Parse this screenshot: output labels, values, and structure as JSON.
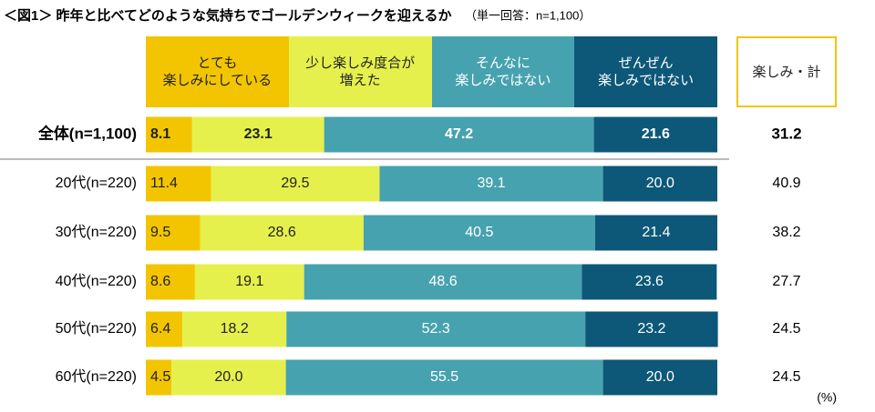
{
  "chart_data": {
    "type": "stacked-bar-100",
    "title": "＜図1＞ 昨年と比べてどのような気持ちでゴールデンウィークを迎えるか",
    "subtitle": "（単一回答：n=1,100）",
    "unit": "(%)",
    "categories": [
      "全体(n=1,100)",
      "20代(n=220)",
      "30代(n=220)",
      "40代(n=220)",
      "50代(n=220)",
      "60代(n=220)"
    ],
    "xlim": [
      0,
      100
    ],
    "series": [
      {
        "name": "とても\n楽しみにしている",
        "color": "#f2c500",
        "text_color": "#222222",
        "values": [
          8.1,
          11.4,
          9.5,
          8.6,
          6.4,
          4.5
        ],
        "value_labels": [
          "8.1",
          "11.4",
          "9.5",
          "8.6",
          "6.4",
          "4.5"
        ]
      },
      {
        "name": "少し楽しみ度合が\n増えた",
        "color": "#e6f04c",
        "text_color": "#222222",
        "values": [
          23.1,
          29.5,
          28.6,
          19.1,
          18.2,
          20
        ],
        "value_labels": [
          "23.1",
          "29.5",
          "28.6",
          "19.1",
          "18.2",
          "20.0"
        ]
      },
      {
        "name": "そんなに\n楽しみではない",
        "color": "#47a2af",
        "text_color": "#ffffff",
        "values": [
          47.2,
          39.1,
          40.5,
          48.6,
          52.3,
          55.5
        ],
        "value_labels": [
          "47.2",
          "39.1",
          "40.5",
          "48.6",
          "52.3",
          "55.5"
        ]
      },
      {
        "name": "ぜんぜん\n楽しみではない",
        "color": "#0d5878",
        "text_color": "#ffffff",
        "values": [
          21.6,
          20,
          21.4,
          23.6,
          23.2,
          20
        ],
        "value_labels": [
          "21.6",
          "20.0",
          "21.4",
          "23.6",
          "23.2",
          "20.0"
        ]
      }
    ],
    "total_header": "楽しみ・計",
    "totals": [
      31.2,
      40.9,
      38.2,
      27.7,
      24.5,
      24.5
    ]
  }
}
